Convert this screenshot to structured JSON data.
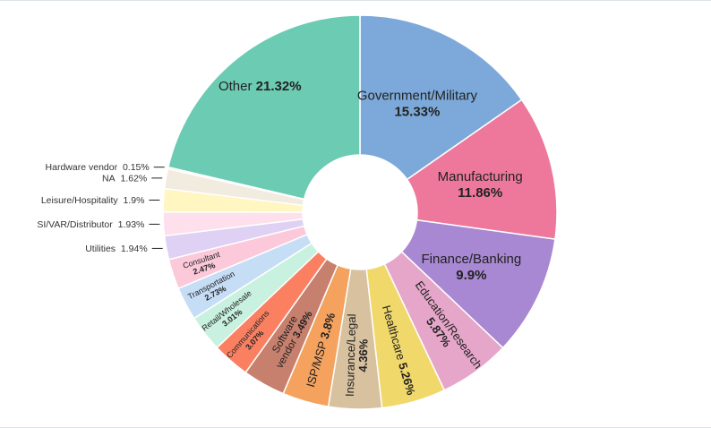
{
  "chart_data": {
    "type": "pie",
    "variant": "donut",
    "title": "",
    "slices": [
      {
        "label": "Government/Military",
        "value": 15.33,
        "display": "15.33%",
        "color": "#7ca9d9",
        "label_mode": "inside",
        "layout": "stack"
      },
      {
        "label": "Manufacturing",
        "value": 11.86,
        "display": "11.86%",
        "color": "#ee789c",
        "label_mode": "inside",
        "layout": "stack"
      },
      {
        "label": "Finance/Banking",
        "value": 9.9,
        "display": "9.9%",
        "color": "#a888d3",
        "label_mode": "inside",
        "layout": "stack"
      },
      {
        "label": "Education/Research",
        "value": 5.87,
        "display": "5.87%",
        "color": "#e6a6c9",
        "label_mode": "inside",
        "layout": "radial-stack"
      },
      {
        "label": "Healthcare",
        "value": 5.26,
        "display": "5.26%",
        "color": "#f1d86b",
        "label_mode": "inside",
        "layout": "radial-inline"
      },
      {
        "label": "Insurance/Legal",
        "value": 4.36,
        "display": "4.36%",
        "color": "#d8c19f",
        "label_mode": "inside",
        "layout": "radial-stack"
      },
      {
        "label": "ISP/MSP",
        "value": 3.8,
        "display": "3.8%",
        "color": "#f4a25d",
        "label_mode": "inside",
        "layout": "radial-inline"
      },
      {
        "label": "Software vendor",
        "value": 3.49,
        "display": "3.49%",
        "color": "#c7806e",
        "label_mode": "inside",
        "layout": "radial-split"
      },
      {
        "label": "Communications",
        "value": 3.07,
        "display": "3.07%",
        "color": "#fb8062",
        "label_mode": "inside",
        "layout": "radial-stack-small"
      },
      {
        "label": "Retail/Wholesale",
        "value": 3.01,
        "display": "3.01%",
        "color": "#c9f1df",
        "label_mode": "inside",
        "layout": "radial-stack-small"
      },
      {
        "label": "Transportation",
        "value": 2.73,
        "display": "2.73%",
        "color": "#c6ddf6",
        "label_mode": "inside",
        "layout": "radial-stack-small"
      },
      {
        "label": "Consultant",
        "value": 2.47,
        "display": "2.47%",
        "color": "#fbc9da",
        "label_mode": "inside",
        "layout": "radial-stack-small"
      },
      {
        "label": "Utilities",
        "value": 1.94,
        "display": "1.94%",
        "color": "#dfd1f4",
        "label_mode": "outside"
      },
      {
        "label": "SI/VAR/Distributor",
        "value": 1.93,
        "display": "1.93%",
        "color": "#fde0ec",
        "label_mode": "outside"
      },
      {
        "label": "Leisure/Hospitality",
        "value": 1.9,
        "display": "1.9%",
        "color": "#fff6c1",
        "label_mode": "outside"
      },
      {
        "label": "NA",
        "value": 1.62,
        "display": "1.62%",
        "color": "#f2ebe0",
        "label_mode": "outside"
      },
      {
        "label": "Hardware vendor",
        "value": 0.15,
        "display": "0.15%",
        "color": "#ffe7cf",
        "label_mode": "outside"
      },
      {
        "label": "Other",
        "value": 21.32,
        "display": "21.32%",
        "color": "#6ccbb3",
        "label_mode": "inside",
        "layout": "inline"
      }
    ]
  }
}
